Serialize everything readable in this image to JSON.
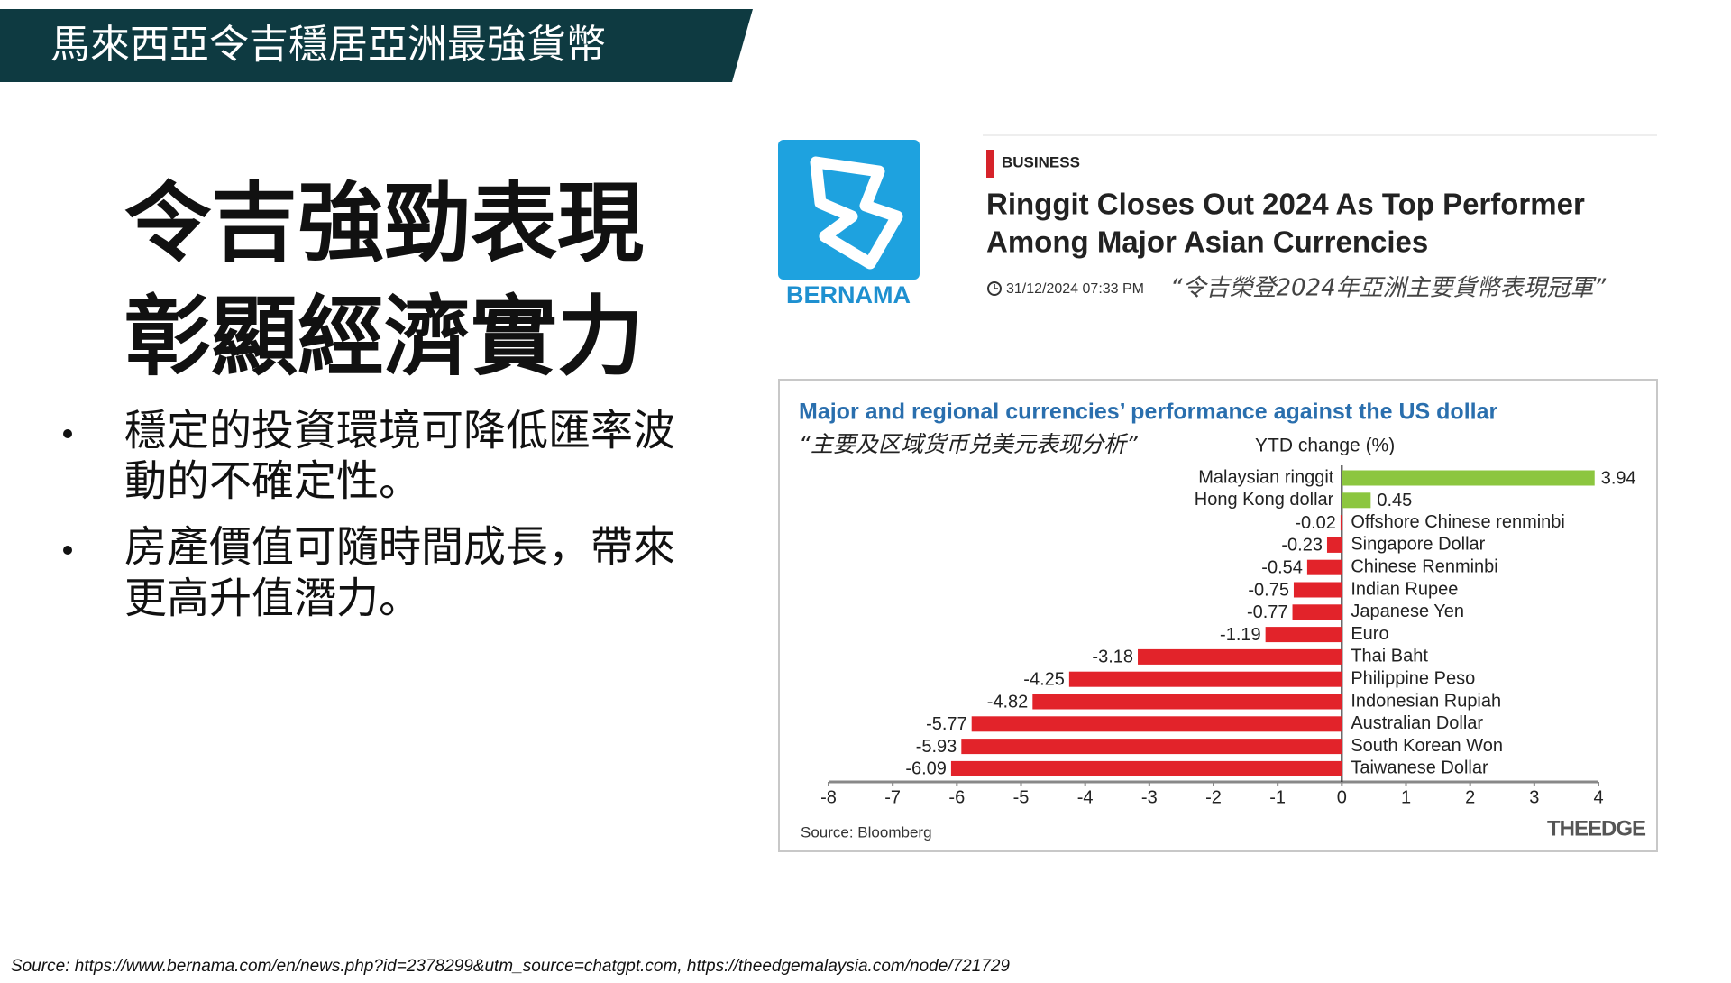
{
  "header": {
    "title": "馬來西亞令吉穩居亞洲最強貨幣"
  },
  "heading": [
    "令吉強勁表現",
    "彰顯經濟實力"
  ],
  "bullets": [
    [
      "穩定的投資環境可降低匯率波",
      "動的不確定性。"
    ],
    [
      "房產價值可隨時間成長，帶來",
      "更高升值潛力。"
    ]
  ],
  "news": {
    "logo": "BERNAMA",
    "section": "BUSINESS",
    "headline": [
      "Ringgit Closes Out 2024 As Top Performer",
      "Among Major Asian Currencies"
    ],
    "date": "31/12/2024 07:33 PM",
    "quote": "“令吉榮登2024年亞洲主要貨幣表現冠軍”"
  },
  "chart_data": {
    "type": "bar",
    "orientation": "horizontal",
    "title": "Major and regional currencies’ performance against the US dollar",
    "subtitle": "“主要及区域货币兑美元表现分析”",
    "axis_label": "YTD change (%)",
    "categories": [
      "Malaysian ringgit",
      "Hong Kong dollar",
      "Offshore Chinese renminbi",
      "Singapore Dollar",
      "Chinese Renminbi",
      "Indian Rupee",
      "Japanese Yen",
      "Euro",
      "Thai Baht",
      "Philippine Peso",
      "Indonesian Rupiah",
      "Australian Dollar",
      "South Korean Won",
      "Taiwanese Dollar"
    ],
    "values": [
      3.94,
      0.45,
      -0.02,
      -0.23,
      -0.54,
      -0.75,
      -0.77,
      -1.19,
      -3.18,
      -4.25,
      -4.82,
      -5.77,
      -5.93,
      -6.09
    ],
    "positive_color": "#8cc63f",
    "negative_color": "#e2232a",
    "xlim": [
      -8,
      4
    ],
    "xticks": [
      -8,
      -7,
      -6,
      -5,
      -4,
      -3,
      -2,
      -1,
      0,
      1,
      2,
      3,
      4
    ],
    "source": "Source: Bloomberg",
    "publisher": "THEEDGE"
  },
  "footer": "Source: https://www.bernama.com/en/news.php?id=2378299&utm_source=chatgpt.com, https://theedgemalaysia.com/node/721729"
}
